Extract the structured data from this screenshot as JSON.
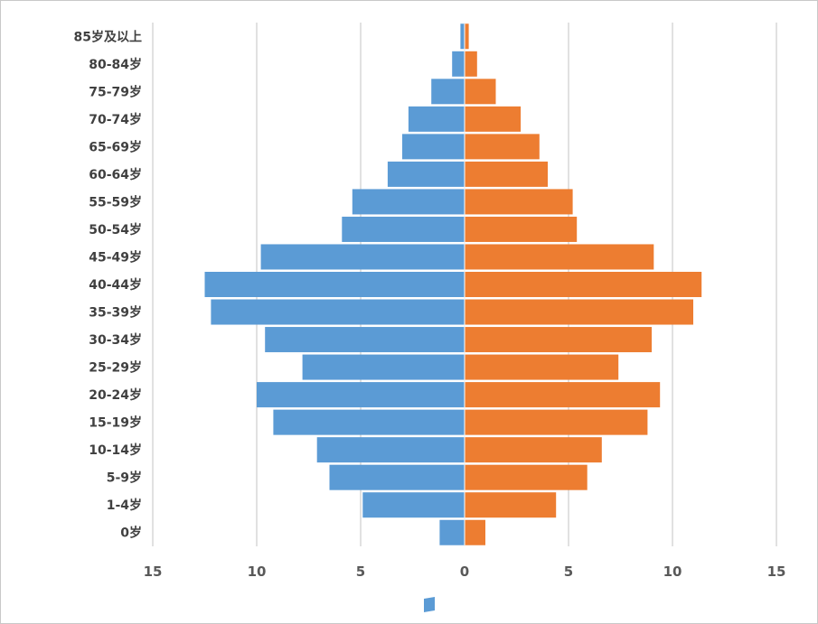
{
  "chart_data": {
    "type": "bar",
    "orientation": "horizontal",
    "layout": "population-pyramid",
    "categories": [
      "0岁",
      "1-4岁",
      "5-9岁",
      "10-14岁",
      "15-19岁",
      "20-24岁",
      "25-29岁",
      "30-34岁",
      "35-39岁",
      "40-44岁",
      "45-49岁",
      "50-54岁",
      "55-59岁",
      "60-64岁",
      "65-69岁",
      "70-74岁",
      "75-79岁",
      "80-84岁",
      "85岁及以上"
    ],
    "series": [
      {
        "side": "left",
        "color": "#5b9bd5",
        "values": [
          1.2,
          4.9,
          6.5,
          7.1,
          9.2,
          10.0,
          7.8,
          9.6,
          12.2,
          12.5,
          9.8,
          5.9,
          5.4,
          3.7,
          3.0,
          2.7,
          1.6,
          0.6,
          0.2
        ]
      },
      {
        "side": "right",
        "color": "#ed7d31",
        "values": [
          1.0,
          4.4,
          5.9,
          6.6,
          8.8,
          9.4,
          7.4,
          9.0,
          11.0,
          11.4,
          9.1,
          5.4,
          5.2,
          4.0,
          3.6,
          2.7,
          1.5,
          0.6,
          0.2
        ]
      }
    ],
    "xlim": [
      -15,
      15
    ],
    "x_ticks": [
      -15,
      -10,
      -5,
      0,
      5,
      10,
      15
    ],
    "x_tick_labels": [
      "15",
      "10",
      "5",
      "0",
      "5",
      "10",
      "15"
    ],
    "grid": "vertical",
    "legend": "bottom",
    "title": "",
    "xlabel": "",
    "ylabel": ""
  }
}
